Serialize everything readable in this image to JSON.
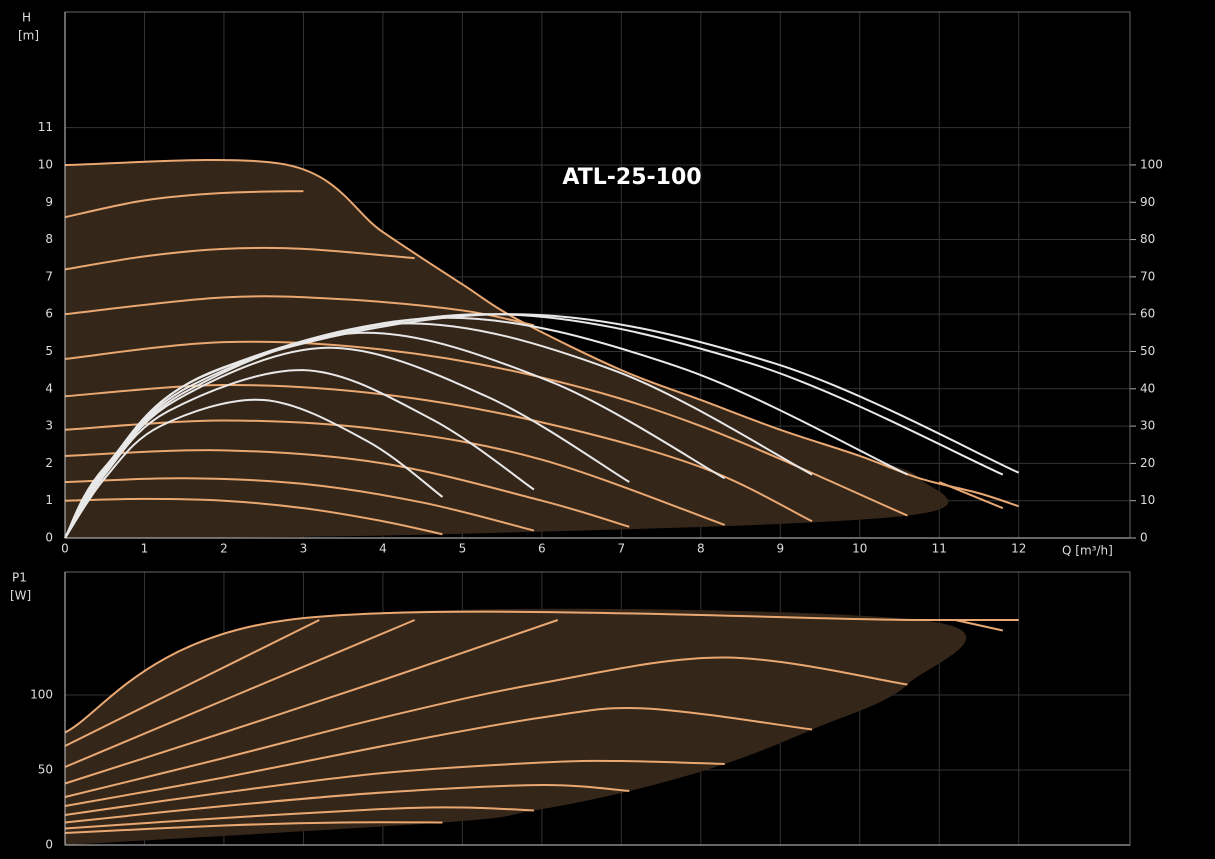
{
  "chart_data": [
    {
      "type": "line",
      "title": "ATL-25-100",
      "y_label_top": "H",
      "y_label_unit": "[m]",
      "x_label": "Q [m³/h]",
      "xlim": [
        0,
        13.4
      ],
      "xticks": [
        0,
        1,
        2,
        3,
        4,
        5,
        6,
        7,
        8,
        9,
        10,
        11,
        12
      ],
      "ylim": [
        0,
        14.1
      ],
      "yticks": [
        0,
        1,
        2,
        3,
        4,
        5,
        6,
        7,
        8,
        9,
        10,
        11
      ],
      "y2lim": [
        0,
        141
      ],
      "y2ticks": [
        0,
        10,
        20,
        30,
        40,
        50,
        60,
        70,
        80,
        90,
        100
      ],
      "grid": true,
      "show_xtick_labels": true,
      "region": {
        "color": "#35261a",
        "x": [
          0,
          2.8,
          4,
          5,
          6,
          7,
          8,
          9,
          10,
          10.75,
          10.6,
          4.75,
          0
        ],
        "values": [
          10,
          10,
          8.2,
          6.8,
          5.5,
          4.5,
          3.7,
          2.9,
          2.2,
          1.6,
          0.6,
          0.1,
          0
        ]
      },
      "series": [
        {
          "color": "#e9a872",
          "x": [
            0,
            2.8,
            4,
            5,
            5.7,
            7,
            8,
            9,
            10,
            10.75,
            11.5,
            12
          ],
          "values": [
            10,
            10,
            8.2,
            6.8,
            5.85,
            4.5,
            3.7,
            2.9,
            2.2,
            1.6,
            1.2,
            0.85
          ]
        },
        {
          "color": "#e9a872",
          "x": [
            11,
            11.8
          ],
          "values": [
            1.5,
            0.8
          ]
        },
        {
          "color": "#e9a872",
          "x": [
            0,
            1,
            2,
            3
          ],
          "values": [
            8.6,
            9.05,
            9.25,
            9.3
          ]
        },
        {
          "color": "#e9a872",
          "x": [
            0,
            1,
            2,
            3,
            4.4
          ],
          "values": [
            7.2,
            7.55,
            7.75,
            7.75,
            7.5
          ]
        },
        {
          "color": "#e9a872",
          "x": [
            0,
            2,
            3.5,
            5,
            5.9
          ],
          "values": [
            6.0,
            6.45,
            6.4,
            6.1,
            5.7
          ]
        },
        {
          "color": "#e9a872",
          "x": [
            0,
            2,
            4,
            6,
            8,
            10.6
          ],
          "values": [
            4.8,
            5.25,
            5.05,
            4.3,
            3.0,
            0.6
          ]
        },
        {
          "color": "#e9a872",
          "x": [
            0,
            2,
            4,
            6,
            8,
            9.4
          ],
          "values": [
            3.8,
            4.1,
            3.85,
            3.1,
            1.9,
            0.45
          ]
        },
        {
          "color": "#e9a872",
          "x": [
            0,
            2,
            4,
            6,
            8.3
          ],
          "values": [
            2.9,
            3.15,
            2.9,
            2.1,
            0.35
          ]
        },
        {
          "color": "#e9a872",
          "x": [
            0,
            2,
            4,
            6,
            7.1
          ],
          "values": [
            2.2,
            2.35,
            2.0,
            1.0,
            0.3
          ]
        },
        {
          "color": "#e9a872",
          "x": [
            0,
            1.5,
            3,
            4.5,
            5.9
          ],
          "values": [
            1.5,
            1.6,
            1.45,
            0.95,
            0.2
          ]
        },
        {
          "color": "#e9a872",
          "x": [
            0,
            1,
            2,
            3,
            4,
            4.75
          ],
          "values": [
            1.0,
            1.05,
            1.0,
            0.8,
            0.45,
            0.1
          ]
        },
        {
          "color": "#e8e8e8",
          "x": [
            0,
            0.5,
            1.2,
            2.5,
            3.8,
            4.75
          ],
          "values": [
            0,
            1.6,
            3.0,
            3.7,
            2.6,
            1.1
          ]
        },
        {
          "color": "#e8e8e8",
          "x": [
            0,
            0.5,
            1.3,
            3.0,
            4.6,
            5.9
          ],
          "values": [
            0,
            1.7,
            3.4,
            4.5,
            3.2,
            1.3
          ]
        },
        {
          "color": "#e8e8e8",
          "x": [
            0,
            0.5,
            1.4,
            3.3,
            5.3,
            7.1
          ],
          "values": [
            0,
            1.75,
            3.7,
            5.1,
            3.8,
            1.5
          ]
        },
        {
          "color": "#e8e8e8",
          "x": [
            0,
            0.5,
            1.5,
            3.7,
            6.1,
            8.3
          ],
          "values": [
            0,
            1.8,
            3.9,
            5.5,
            4.2,
            1.6
          ]
        },
        {
          "color": "#e8e8e8",
          "x": [
            0,
            0.5,
            1.6,
            4.2,
            6.9,
            9.4
          ],
          "values": [
            0,
            1.82,
            4.1,
            5.75,
            4.5,
            1.7
          ]
        },
        {
          "color": "#e8e8e8",
          "x": [
            0,
            0.5,
            1.7,
            4.7,
            7.7,
            10.6
          ],
          "values": [
            0,
            1.85,
            4.3,
            5.9,
            4.6,
            1.7
          ]
        },
        {
          "color": "#e8e8e8",
          "x": [
            0,
            0.5,
            1.8,
            5.2,
            8.6,
            11.8
          ],
          "values": [
            0,
            1.87,
            4.4,
            6.0,
            4.7,
            1.7
          ]
        },
        {
          "color": "#e8e8e8",
          "x": [
            0,
            0.5,
            1.9,
            5.5,
            8.9,
            12
          ],
          "values": [
            0,
            1.9,
            4.5,
            6.0,
            4.7,
            1.75
          ]
        }
      ]
    },
    {
      "type": "line",
      "y_label_top": "P1",
      "y_label_unit": "[W]",
      "xlim": [
        0,
        13.4
      ],
      "xticks": [
        0,
        1,
        2,
        3,
        4,
        5,
        6,
        7,
        8,
        9,
        10,
        11,
        12
      ],
      "ylim": [
        0,
        182
      ],
      "yticks": [
        0,
        50,
        100
      ],
      "grid": true,
      "show_xtick_labels": false,
      "region": {
        "color": "#35261a",
        "x": [
          0,
          2.8,
          10.75,
          10.6,
          9.4,
          8.3,
          7.1,
          5.9,
          4.75,
          0
        ],
        "values": [
          75,
          150,
          150,
          107,
          77,
          54,
          36,
          23,
          15,
          0
        ]
      },
      "series": [
        {
          "color": "#e9a872",
          "x": [
            0,
            2.8,
            10.75,
            12
          ],
          "values": [
            75,
            150,
            150,
            150
          ]
        },
        {
          "color": "#e9a872",
          "x": [
            11.2,
            11.8
          ],
          "values": [
            150,
            143
          ]
        },
        {
          "color": "#e9a872",
          "x": [
            0,
            1.6,
            3.2
          ],
          "values": [
            66,
            108,
            150
          ]
        },
        {
          "color": "#e9a872",
          "x": [
            0,
            2.2,
            4.4
          ],
          "values": [
            52,
            101,
            150
          ]
        },
        {
          "color": "#e9a872",
          "x": [
            0,
            2,
            4,
            6.2
          ],
          "values": [
            41,
            75,
            110,
            150
          ]
        },
        {
          "color": "#e9a872",
          "x": [
            0,
            2,
            4,
            6,
            8.3,
            10.6
          ],
          "values": [
            32,
            58,
            85,
            108,
            125,
            107
          ]
        },
        {
          "color": "#e9a872",
          "x": [
            0,
            2,
            4,
            6,
            7.3,
            9.4
          ],
          "values": [
            26,
            45,
            66,
            85,
            91,
            77
          ]
        },
        {
          "color": "#e9a872",
          "x": [
            0,
            2,
            4,
            6,
            7,
            8.3
          ],
          "values": [
            20,
            35,
            48,
            55,
            56,
            54
          ]
        },
        {
          "color": "#e9a872",
          "x": [
            0,
            2,
            4,
            6,
            7.1
          ],
          "values": [
            15,
            26,
            35,
            40,
            36
          ]
        },
        {
          "color": "#e9a872",
          "x": [
            0,
            2,
            4,
            5,
            5.9
          ],
          "values": [
            11,
            18,
            24,
            25,
            23
          ]
        },
        {
          "color": "#e9a872",
          "x": [
            0,
            2,
            3.5,
            4.75
          ],
          "values": [
            8,
            13,
            15,
            15
          ]
        }
      ]
    }
  ]
}
